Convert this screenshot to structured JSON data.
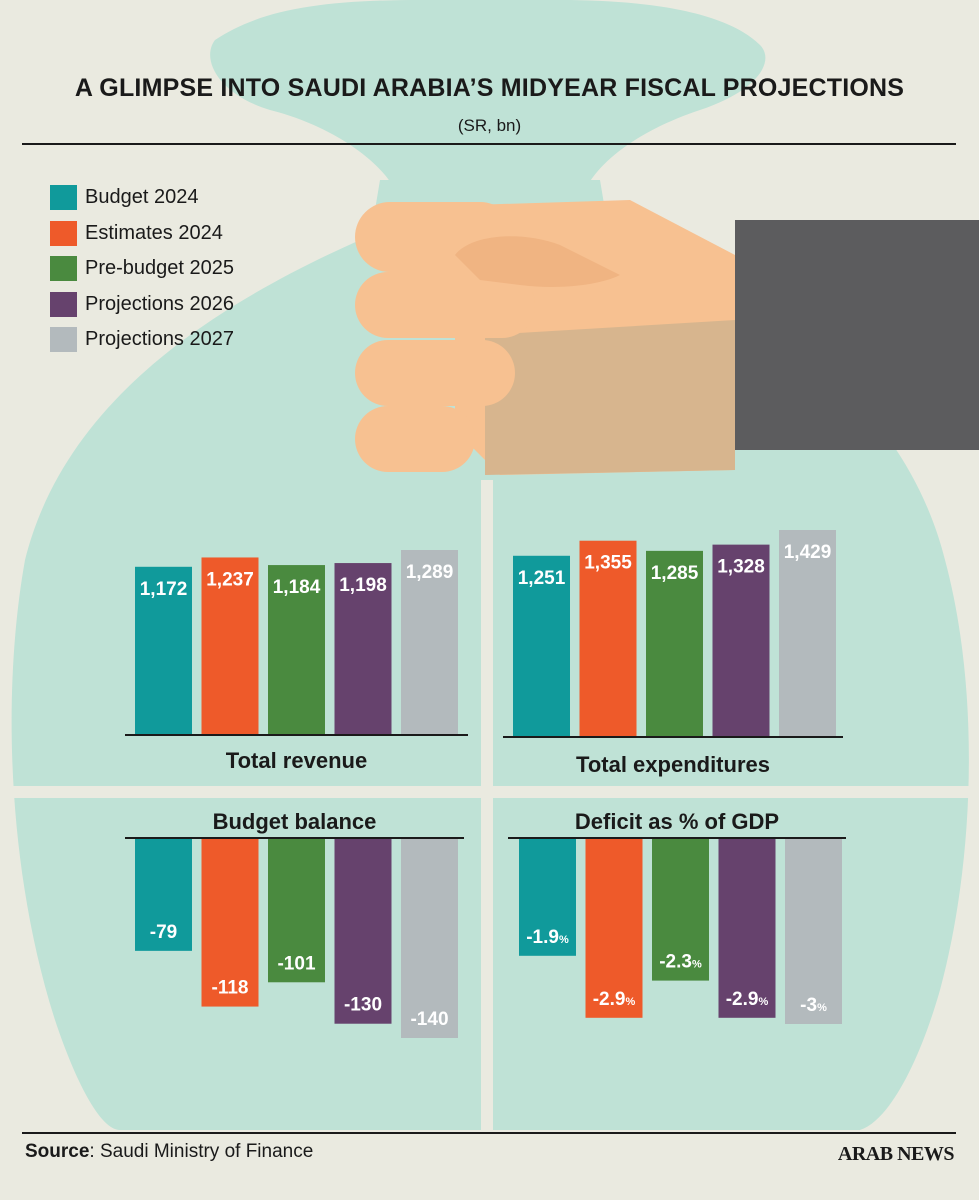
{
  "title": "A GLIMPSE INTO SAUDI ARABIA’S MIDYEAR FISCAL PROJECTIONS",
  "subtitle": "(SR, bn)",
  "legend": [
    {
      "label": "Budget 2024",
      "color": "#109a9b"
    },
    {
      "label": "Estimates 2024",
      "color": "#ee5a2a"
    },
    {
      "label": "Pre-budget 2025",
      "color": "#4a8a3f"
    },
    {
      "label": "Projections 2026",
      "color": "#66426d"
    },
    {
      "label": "Projections 2027",
      "color": "#b3babd"
    }
  ],
  "chart_data": [
    {
      "type": "bar",
      "title": "Total revenue",
      "categories": [
        "Budget 2024",
        "Estimates 2024",
        "Pre-budget 2025",
        "Projections 2026",
        "Projections 2027"
      ],
      "values": [
        1172,
        1237,
        1184,
        1198,
        1289
      ],
      "labels": [
        "1,172",
        "1,237",
        "1,184",
        "1,198",
        "1,289"
      ],
      "unit": "SR bn"
    },
    {
      "type": "bar",
      "title": "Total expenditures",
      "categories": [
        "Budget 2024",
        "Estimates 2024",
        "Pre-budget 2025",
        "Projections 2026",
        "Projections 2027"
      ],
      "values": [
        1251,
        1355,
        1285,
        1328,
        1429
      ],
      "labels": [
        "1,251",
        "1,355",
        "1,285",
        "1,328",
        "1,429"
      ],
      "unit": "SR bn"
    },
    {
      "type": "bar",
      "title": "Budget balance",
      "categories": [
        "Budget 2024",
        "Estimates 2024",
        "Pre-budget 2025",
        "Projections 2026",
        "Projections 2027"
      ],
      "values": [
        -79,
        -118,
        -101,
        -130,
        -140
      ],
      "labels": [
        "-79",
        "-118",
        "-101",
        "-130",
        "-140"
      ],
      "unit": "SR bn"
    },
    {
      "type": "bar",
      "title": "Deficit as % of GDP",
      "categories": [
        "Budget 2024",
        "Estimates 2024",
        "Pre-budget 2025",
        "Projections 2026",
        "Projections 2027"
      ],
      "values": [
        -1.9,
        -2.9,
        -2.3,
        -2.9,
        -3
      ],
      "labels": [
        "-1.9",
        "-2.9",
        "-2.3",
        "-2.9",
        "-3"
      ],
      "unit_suffix": "%"
    }
  ],
  "source": {
    "label": "Source",
    "text": ": Saudi Ministry of Finance"
  },
  "logo": "ARAB NEWS",
  "colors": {
    "background": "#eaeae0",
    "bag": "#bfe2d6",
    "skin": "#f7c191",
    "sleeve": "#5c5c5e"
  }
}
